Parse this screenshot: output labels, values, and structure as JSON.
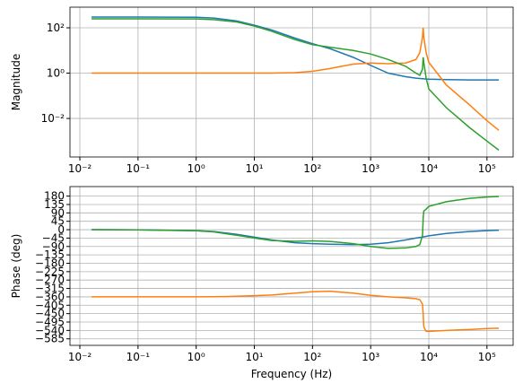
{
  "chart_data": [
    {
      "type": "line",
      "ylabel": "Magnitude",
      "xscale": "log",
      "yscale": "log",
      "grid": true,
      "xlim": [
        0.00676,
        281838
      ],
      "ylim": [
        0.0002,
        813
      ],
      "xticks": [
        {
          "value": 0.01,
          "label": "10⁻²"
        },
        {
          "value": 0.1,
          "label": "10⁻¹"
        },
        {
          "value": 1,
          "label": "10⁰"
        },
        {
          "value": 10,
          "label": "10¹"
        },
        {
          "value": 100,
          "label": "10²"
        },
        {
          "value": 1000,
          "label": "10³"
        },
        {
          "value": 10000,
          "label": "10⁴"
        },
        {
          "value": 100000,
          "label": "10⁵"
        }
      ],
      "yticks": [
        {
          "value": 0.01,
          "label": "10⁻²"
        },
        {
          "value": 1,
          "label": "10⁰"
        },
        {
          "value": 100,
          "label": "10²"
        }
      ],
      "x": [
        0.0159,
        0.1,
        1,
        2,
        5,
        10,
        20,
        50,
        100,
        200,
        500,
        1000,
        2000,
        4000,
        6000,
        7000,
        7800,
        8000,
        8200,
        9000,
        10000,
        20000,
        50000,
        100000,
        160000
      ],
      "series": [
        {
          "color": "#1f77b4",
          "values": [
            300,
            300,
            290,
            270,
            200,
            130,
            80,
            35,
            20,
            12,
            5,
            2.2,
            1.0,
            0.7,
            0.6,
            0.58,
            0.57,
            0.57,
            0.56,
            0.55,
            0.54,
            0.52,
            0.5,
            0.5,
            0.5
          ]
        },
        {
          "color": "#ff7f0e",
          "values": [
            1,
            1,
            1,
            1,
            1,
            1,
            1,
            1.05,
            1.2,
            1.6,
            2.5,
            2.8,
            2.6,
            2.8,
            4,
            8,
            40,
            100,
            40,
            8,
            3,
            0.3,
            0.04,
            0.008,
            0.003
          ]
        },
        {
          "color": "#2ca02c",
          "values": [
            250,
            250,
            245,
            230,
            180,
            120,
            70,
            30,
            18,
            14,
            10,
            7,
            4,
            2,
            1,
            0.8,
            1.5,
            5,
            3,
            0.6,
            0.2,
            0.03,
            0.004,
            0.001,
            0.0004
          ]
        }
      ]
    },
    {
      "type": "line",
      "ylabel": "Phase (deg)",
      "xlabel": "Frequency (Hz)",
      "xscale": "log",
      "yscale": "linear",
      "grid": true,
      "xlim": [
        0.00676,
        281838
      ],
      "ylim": [
        -620,
        231
      ],
      "xticks": [
        {
          "value": 0.01,
          "label": "10⁻²"
        },
        {
          "value": 0.1,
          "label": "10⁻¹"
        },
        {
          "value": 1,
          "label": "10⁰"
        },
        {
          "value": 10,
          "label": "10¹"
        },
        {
          "value": 100,
          "label": "10²"
        },
        {
          "value": 1000,
          "label": "10³"
        },
        {
          "value": 10000,
          "label": "10⁴"
        },
        {
          "value": 100000,
          "label": "10⁵"
        }
      ],
      "yticks": [
        180,
        135,
        90,
        45,
        0,
        {
          "value": -45,
          "label": "−45"
        },
        {
          "value": -90,
          "label": "−90"
        },
        {
          "value": -135,
          "label": "−135"
        },
        {
          "value": -180,
          "label": "−180"
        },
        {
          "value": -225,
          "label": "−225"
        },
        {
          "value": -270,
          "label": "−270"
        },
        {
          "value": -315,
          "label": "−315"
        },
        {
          "value": -360,
          "label": "−360"
        },
        {
          "value": -405,
          "label": "−405"
        },
        {
          "value": -450,
          "label": "−450"
        },
        {
          "value": -495,
          "label": "−495"
        },
        {
          "value": -540,
          "label": "−540"
        },
        {
          "value": -585,
          "label": "−585"
        }
      ],
      "x": [
        0.0159,
        0.1,
        1,
        2,
        5,
        10,
        20,
        50,
        100,
        200,
        500,
        1000,
        2000,
        4000,
        6000,
        7000,
        7800,
        8000,
        8200,
        9000,
        10000,
        20000,
        50000,
        100000,
        160000
      ],
      "series": [
        {
          "color": "#1f77b4",
          "values": [
            0,
            -1,
            -5,
            -10,
            -25,
            -40,
            -55,
            -70,
            -75,
            -78,
            -80,
            -78,
            -70,
            -55,
            -45,
            -42,
            -40,
            -39,
            -38,
            -36,
            -33,
            -20,
            -10,
            -5,
            -3
          ]
        },
        {
          "color": "#ff7f0e",
          "values": [
            -360,
            -360,
            -360,
            -359,
            -357,
            -354,
            -350,
            -340,
            -333,
            -330,
            -340,
            -352,
            -360,
            -365,
            -370,
            -375,
            -400,
            -450,
            -520,
            -545,
            -545,
            -540,
            -535,
            -530,
            -528
          ]
        },
        {
          "color": "#2ca02c",
          "values": [
            0,
            -1,
            -6,
            -12,
            -30,
            -45,
            -58,
            -62,
            -60,
            -63,
            -75,
            -90,
            -100,
            -98,
            -90,
            -80,
            -30,
            60,
            100,
            110,
            125,
            150,
            168,
            175,
            178
          ]
        }
      ]
    }
  ]
}
